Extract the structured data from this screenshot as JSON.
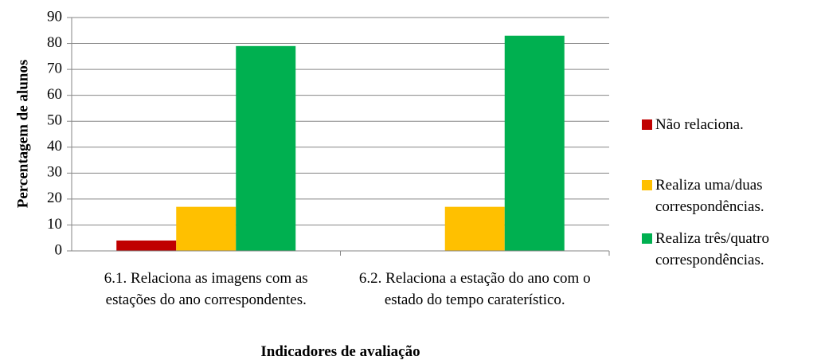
{
  "chart_data": {
    "type": "bar",
    "y_label": "Percentagem de alunos",
    "x_label": "Indicadores de avaliação",
    "categories": [
      "6.1. Relaciona as imagens com as estações do ano correspondentes.",
      "6.2. Relaciona a estação do ano com o estado do tempo caraterístico."
    ],
    "series": [
      {
        "name": "Não relaciona.",
        "color": "#c00000",
        "values": [
          4,
          0
        ]
      },
      {
        "name": "Realiza uma/duas correspondências.",
        "color": "#ffc000",
        "values": [
          17,
          17
        ]
      },
      {
        "name": "Realiza três/quatro correspondências.",
        "color": "#00b050",
        "values": [
          79,
          83
        ]
      }
    ],
    "ylim": [
      0,
      90
    ],
    "yticks": [
      0,
      10,
      20,
      30,
      40,
      50,
      60,
      70,
      80,
      90
    ],
    "grid": true,
    "legend": "right"
  }
}
